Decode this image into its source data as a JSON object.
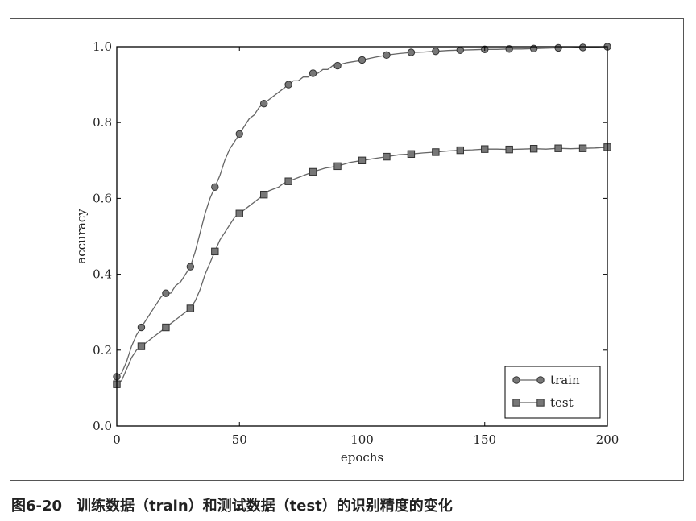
{
  "caption": "图6-20　训练数据（train）和测试数据（test）的识别精度的变化",
  "chart_data": {
    "type": "line",
    "xlabel": "epochs",
    "ylabel": "accuracy",
    "xlim": [
      0,
      200
    ],
    "ylim": [
      0.0,
      1.0
    ],
    "xticks": [
      0,
      50,
      100,
      150,
      200
    ],
    "yticks": [
      0.0,
      0.2,
      0.4,
      0.6,
      0.8,
      1.0
    ],
    "xtick_labels": [
      "0",
      "50",
      "100",
      "150",
      "200"
    ],
    "ytick_labels": [
      "0.0",
      "0.2",
      "0.4",
      "0.6",
      "0.8",
      "1.0"
    ],
    "grid": false,
    "legend_position": "lower-right",
    "line_color": "#666666",
    "marker_fill": "#777777",
    "series": [
      {
        "name": "train",
        "marker": "circle",
        "x": [
          0,
          2,
          4,
          6,
          8,
          10,
          12,
          14,
          16,
          18,
          20,
          22,
          24,
          26,
          28,
          30,
          32,
          34,
          36,
          38,
          40,
          42,
          44,
          46,
          48,
          50,
          52,
          54,
          56,
          58,
          60,
          62,
          64,
          66,
          68,
          70,
          72,
          74,
          76,
          78,
          80,
          82,
          84,
          86,
          88,
          90,
          92,
          94,
          96,
          98,
          100,
          105,
          110,
          115,
          120,
          125,
          130,
          135,
          140,
          145,
          150,
          155,
          160,
          165,
          170,
          175,
          180,
          185,
          190,
          195,
          200
        ],
        "y": [
          0.13,
          0.14,
          0.17,
          0.21,
          0.24,
          0.26,
          0.28,
          0.3,
          0.32,
          0.34,
          0.35,
          0.35,
          0.37,
          0.38,
          0.4,
          0.42,
          0.46,
          0.51,
          0.56,
          0.6,
          0.63,
          0.66,
          0.7,
          0.73,
          0.75,
          0.77,
          0.79,
          0.81,
          0.82,
          0.84,
          0.85,
          0.86,
          0.87,
          0.88,
          0.89,
          0.9,
          0.91,
          0.91,
          0.92,
          0.92,
          0.93,
          0.93,
          0.94,
          0.94,
          0.95,
          0.95,
          0.955,
          0.958,
          0.96,
          0.962,
          0.965,
          0.972,
          0.978,
          0.982,
          0.985,
          0.986,
          0.988,
          0.99,
          0.991,
          0.992,
          0.993,
          0.993,
          0.994,
          0.994,
          0.995,
          0.996,
          0.997,
          0.997,
          0.998,
          0.999,
          1.0
        ]
      },
      {
        "name": "test",
        "marker": "square",
        "x": [
          0,
          2,
          4,
          6,
          8,
          10,
          12,
          14,
          16,
          18,
          20,
          22,
          24,
          26,
          28,
          30,
          32,
          34,
          36,
          38,
          40,
          42,
          44,
          46,
          48,
          50,
          52,
          54,
          56,
          58,
          60,
          62,
          64,
          66,
          68,
          70,
          72,
          74,
          76,
          78,
          80,
          85,
          90,
          95,
          100,
          105,
          110,
          115,
          120,
          125,
          130,
          135,
          140,
          145,
          150,
          155,
          160,
          165,
          170,
          175,
          180,
          185,
          190,
          195,
          200
        ],
        "y": [
          0.11,
          0.12,
          0.15,
          0.18,
          0.2,
          0.21,
          0.22,
          0.23,
          0.24,
          0.25,
          0.26,
          0.27,
          0.28,
          0.29,
          0.3,
          0.31,
          0.33,
          0.36,
          0.4,
          0.43,
          0.46,
          0.49,
          0.51,
          0.53,
          0.55,
          0.56,
          0.57,
          0.58,
          0.59,
          0.6,
          0.61,
          0.62,
          0.625,
          0.63,
          0.64,
          0.645,
          0.65,
          0.655,
          0.66,
          0.665,
          0.67,
          0.68,
          0.685,
          0.695,
          0.7,
          0.705,
          0.71,
          0.715,
          0.717,
          0.72,
          0.722,
          0.725,
          0.727,
          0.728,
          0.73,
          0.73,
          0.729,
          0.73,
          0.731,
          0.73,
          0.732,
          0.731,
          0.732,
          0.733,
          0.735
        ]
      }
    ]
  }
}
